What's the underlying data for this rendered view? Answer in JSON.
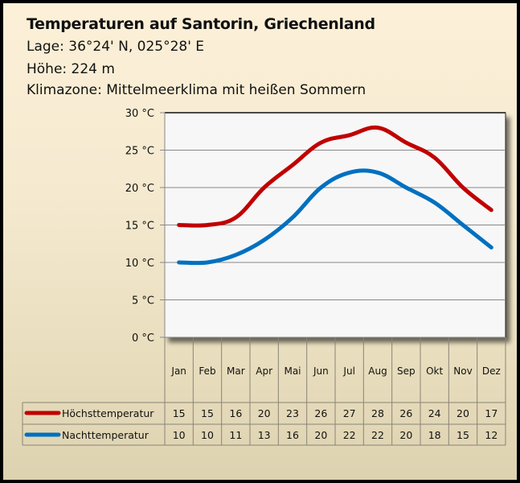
{
  "header": {
    "title": "Temperaturen auf Santorin, Griechenland",
    "lage": "Lage: 36°24' N, 025°28' E",
    "hoehe": "Höhe: 224 m",
    "klimazone": "Klimazone: Mittelmeerklima mit heißen Sommern"
  },
  "chart_data": {
    "type": "line",
    "title": "Temperaturen auf Santorin, Griechenland",
    "xlabel": "",
    "ylabel": "",
    "ylim": [
      0,
      30
    ],
    "yticks": [
      0,
      5,
      10,
      15,
      20,
      25,
      30
    ],
    "ytick_labels": [
      "0 °C",
      "5 °C",
      "10 °C",
      "15 °C",
      "20 °C",
      "25 °C",
      "30 °C"
    ],
    "grid": true,
    "smooth": true,
    "categories": [
      "Jan",
      "Feb",
      "Mar",
      "Apr",
      "Mai",
      "Jun",
      "Jul",
      "Aug",
      "Sep",
      "Okt",
      "Nov",
      "Dez"
    ],
    "series": [
      {
        "name": "Höchsttemperatur",
        "color": "#c00000",
        "values": [
          15,
          15,
          16,
          20,
          23,
          26,
          27,
          28,
          26,
          24,
          20,
          17
        ]
      },
      {
        "name": "Nachttemperatur",
        "color": "#0070c0",
        "values": [
          10,
          10,
          11,
          13,
          16,
          20,
          22,
          22,
          20,
          18,
          15,
          12
        ]
      }
    ],
    "legend": "data-table-left"
  }
}
